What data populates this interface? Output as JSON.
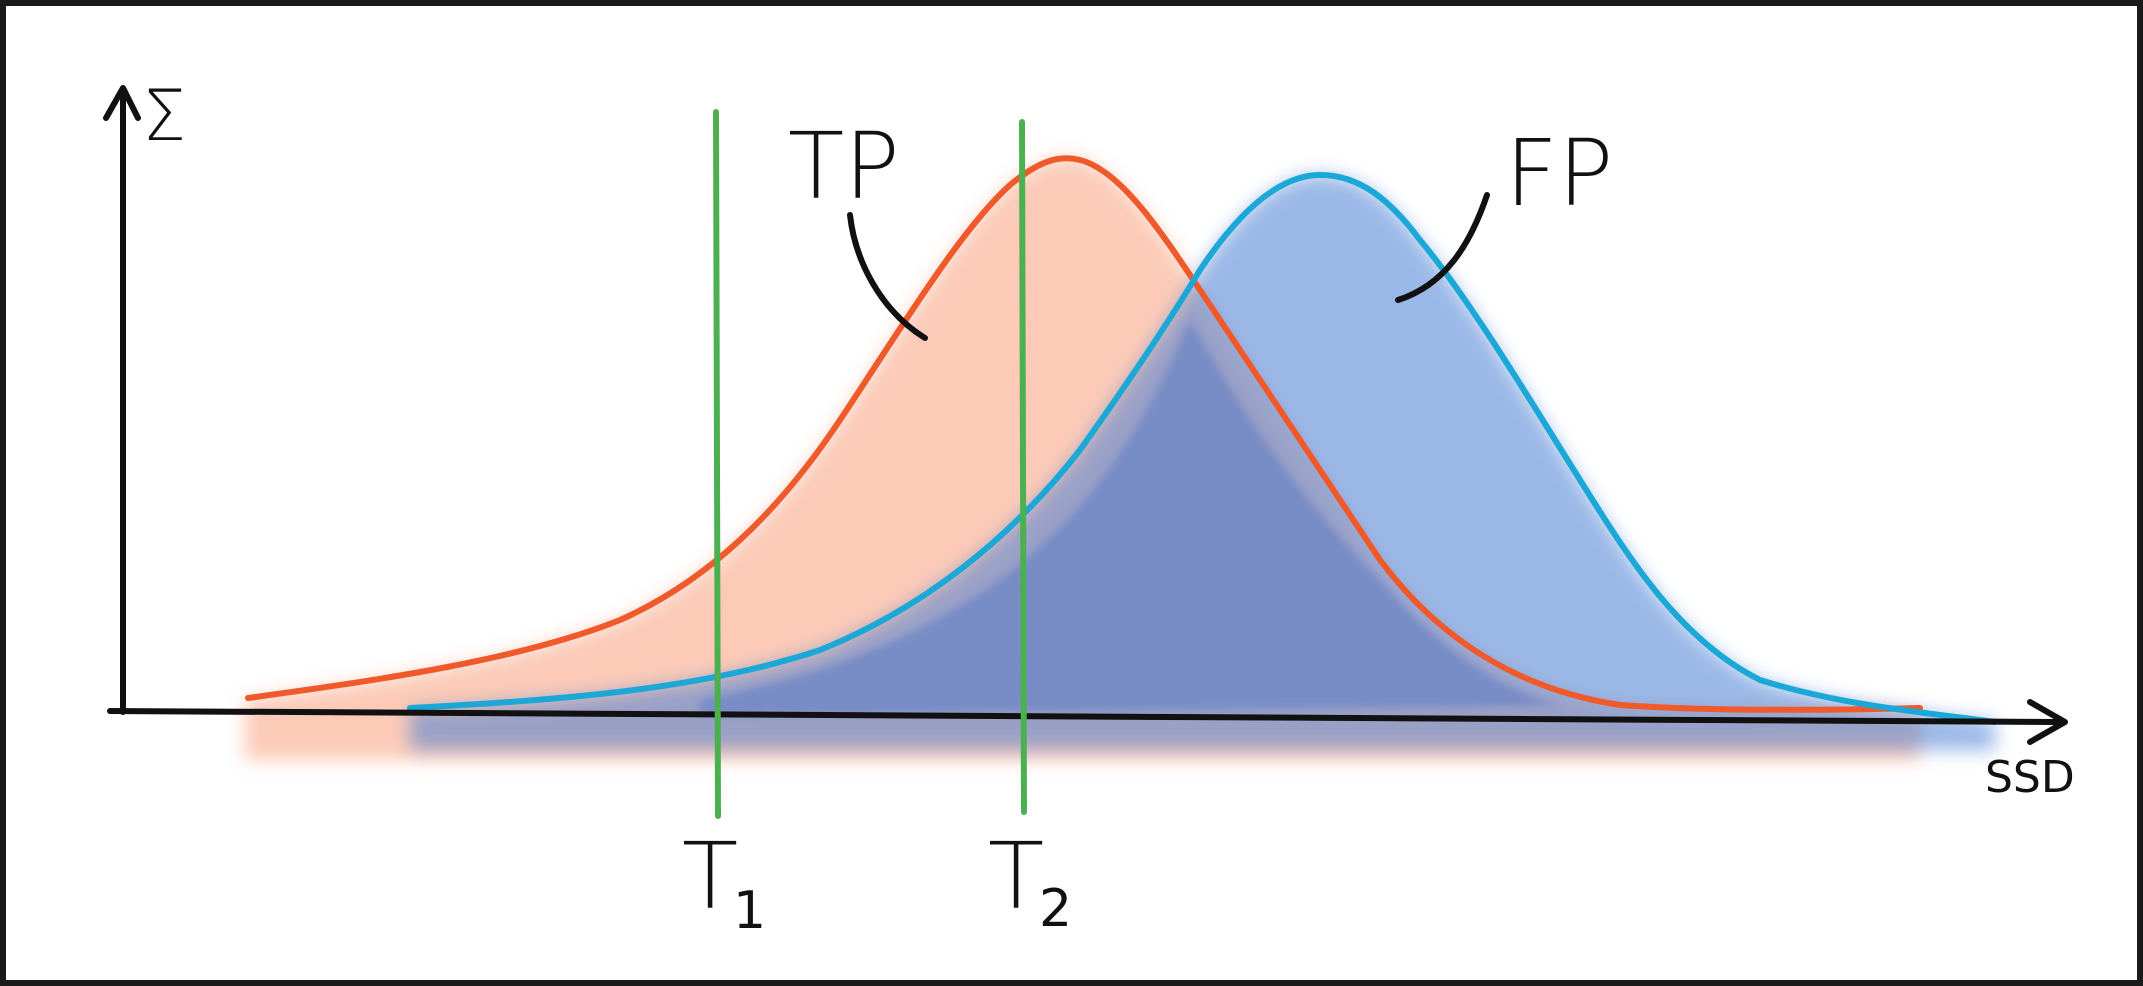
{
  "labels": {
    "y_axis": "Σ",
    "x_axis": "SSD",
    "tp": "TP",
    "fp": "FP",
    "threshold_1": "T",
    "threshold_1_sub": "1",
    "threshold_2": "T",
    "threshold_2_sub": "2"
  },
  "colors": {
    "frame": "#1a1a1a",
    "axes": "#111111",
    "tp_line": "#f05a2a",
    "tp_fill": "#fbb9a0",
    "fp_line": "#1ba8d6",
    "fp_fill": "#4a7fd4",
    "threshold": "#4cb050"
  }
}
